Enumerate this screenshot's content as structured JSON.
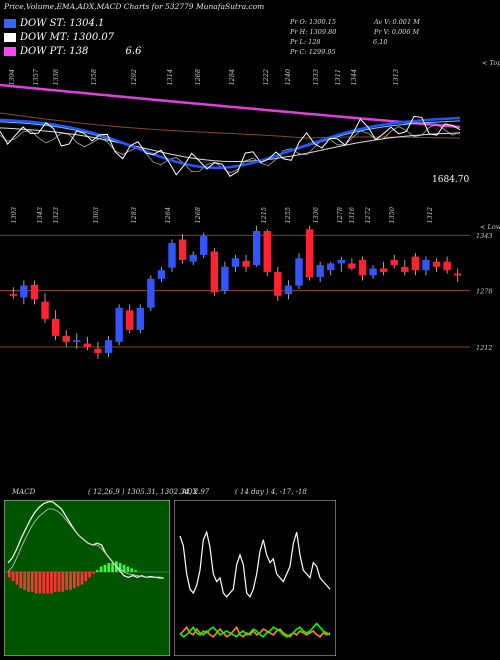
{
  "header": {
    "title": "Price,Volume,EMA,ADX,MACD Charts for 532779 MunafaSutra.com"
  },
  "legend": [
    {
      "label": "DOW ST: 1304.1",
      "color": "#3366ff"
    },
    {
      "label": "DOW MT: 1300.07",
      "color": "#ffffff"
    },
    {
      "label": "DOW PT: 138",
      "color": "#ff44ff",
      "extra": "6.6"
    }
  ],
  "quote": {
    "pr_o": "Pr   O: 1300.15",
    "pr_h": "Pr   H: 1309.80",
    "pr_l": "Pr   L: 128",
    "pr_c": "Pr   C: 1299.95",
    "av_v": "Av  V: 0.001  M",
    "pr_v": "Pr   V: 0.006  M",
    "mid_val": "6.10"
  },
  "ema_panel": {
    "top_label": "< Tops",
    "last_value": "1684.70",
    "top_ticks": [
      "1394",
      "1357",
      "1338",
      "1358",
      "1292",
      "1314",
      "1268",
      "1284",
      "1222",
      "1240",
      "1333",
      "1311",
      "1344",
      "1313"
    ],
    "bottom_ticks": [
      "1393",
      "1343",
      "1323",
      "1303",
      "1283",
      "1264",
      "1268",
      "1215",
      "1255",
      "1336",
      "1278",
      "1316",
      "1272",
      "1350",
      "1312"
    ],
    "bottom_label": "< Lows"
  },
  "chart_data": [
    {
      "type": "candlestick",
      "title": "",
      "y_labels": [
        "1343",
        "1278",
        "1212"
      ],
      "ylim": [
        1185,
        1355
      ],
      "candles": [
        {
          "o": 1274,
          "h": 1282,
          "l": 1268,
          "c": 1272
        },
        {
          "o": 1270,
          "h": 1290,
          "l": 1262,
          "c": 1284
        },
        {
          "o": 1285,
          "h": 1290,
          "l": 1262,
          "c": 1268
        },
        {
          "o": 1265,
          "h": 1275,
          "l": 1240,
          "c": 1245
        },
        {
          "o": 1245,
          "h": 1255,
          "l": 1220,
          "c": 1225
        },
        {
          "o": 1225,
          "h": 1232,
          "l": 1212,
          "c": 1218
        },
        {
          "o": 1218,
          "h": 1228,
          "l": 1210,
          "c": 1220
        },
        {
          "o": 1216,
          "h": 1224,
          "l": 1208,
          "c": 1212
        },
        {
          "o": 1210,
          "h": 1218,
          "l": 1198,
          "c": 1205
        },
        {
          "o": 1205,
          "h": 1225,
          "l": 1200,
          "c": 1220
        },
        {
          "o": 1218,
          "h": 1262,
          "l": 1214,
          "c": 1258
        },
        {
          "o": 1255,
          "h": 1262,
          "l": 1228,
          "c": 1232
        },
        {
          "o": 1232,
          "h": 1262,
          "l": 1228,
          "c": 1258
        },
        {
          "o": 1258,
          "h": 1296,
          "l": 1254,
          "c": 1292
        },
        {
          "o": 1292,
          "h": 1306,
          "l": 1288,
          "c": 1302
        },
        {
          "o": 1305,
          "h": 1338,
          "l": 1300,
          "c": 1334
        },
        {
          "o": 1338,
          "h": 1344,
          "l": 1310,
          "c": 1314
        },
        {
          "o": 1312,
          "h": 1324,
          "l": 1308,
          "c": 1320
        },
        {
          "o": 1320,
          "h": 1346,
          "l": 1316,
          "c": 1342
        },
        {
          "o": 1324,
          "h": 1328,
          "l": 1272,
          "c": 1276
        },
        {
          "o": 1278,
          "h": 1312,
          "l": 1274,
          "c": 1306
        },
        {
          "o": 1306,
          "h": 1320,
          "l": 1300,
          "c": 1316
        },
        {
          "o": 1313,
          "h": 1320,
          "l": 1300,
          "c": 1306
        },
        {
          "o": 1308,
          "h": 1354,
          "l": 1306,
          "c": 1348
        },
        {
          "o": 1348,
          "h": 1350,
          "l": 1295,
          "c": 1300
        },
        {
          "o": 1300,
          "h": 1306,
          "l": 1266,
          "c": 1272
        },
        {
          "o": 1274,
          "h": 1290,
          "l": 1268,
          "c": 1284
        },
        {
          "o": 1284,
          "h": 1322,
          "l": 1280,
          "c": 1316
        },
        {
          "o": 1350,
          "h": 1354,
          "l": 1290,
          "c": 1294
        },
        {
          "o": 1294,
          "h": 1312,
          "l": 1288,
          "c": 1308
        },
        {
          "o": 1302,
          "h": 1312,
          "l": 1296,
          "c": 1310
        },
        {
          "o": 1310,
          "h": 1318,
          "l": 1300,
          "c": 1314
        },
        {
          "o": 1310,
          "h": 1316,
          "l": 1302,
          "c": 1304
        },
        {
          "o": 1314,
          "h": 1318,
          "l": 1290,
          "c": 1296
        },
        {
          "o": 1296,
          "h": 1308,
          "l": 1292,
          "c": 1304
        },
        {
          "o": 1304,
          "h": 1312,
          "l": 1296,
          "c": 1300
        },
        {
          "o": 1314,
          "h": 1320,
          "l": 1304,
          "c": 1308
        },
        {
          "o": 1306,
          "h": 1314,
          "l": 1296,
          "c": 1300
        },
        {
          "o": 1318,
          "h": 1322,
          "l": 1296,
          "c": 1302
        },
        {
          "o": 1302,
          "h": 1318,
          "l": 1296,
          "c": 1314
        },
        {
          "o": 1312,
          "h": 1316,
          "l": 1300,
          "c": 1306
        },
        {
          "o": 1312,
          "h": 1318,
          "l": 1298,
          "c": 1302
        },
        {
          "o": 1298,
          "h": 1304,
          "l": 1288,
          "c": 1296
        }
      ],
      "colors": {
        "up": "#3355ff",
        "down": "#ff2233"
      }
    },
    {
      "type": "line",
      "title": "MACD",
      "params": "( 12,26,9 ) 1305.31,  1302.34,  2.97",
      "series": [
        {
          "values": [
            0.1,
            0.16,
            0.26,
            0.38,
            0.48,
            0.58,
            0.66,
            0.72,
            0.76,
            0.78,
            0.78,
            0.74,
            0.7,
            0.62,
            0.54,
            0.46,
            0.4,
            0.36,
            0.32,
            0.3,
            0.32,
            0.3,
            0.2,
            0.14,
            0.08,
            0.02,
            -0.04,
            -0.06,
            -0.04,
            -0.06,
            -0.04,
            -0.06,
            -0.05,
            -0.06,
            -0.06,
            -0.07
          ]
        },
        {
          "values": [
            0.0,
            0.06,
            0.16,
            0.28,
            0.38,
            0.48,
            0.56,
            0.62,
            0.66,
            0.7,
            0.7,
            0.68,
            0.64,
            0.58,
            0.52,
            0.46,
            0.4,
            0.36,
            0.32,
            0.3,
            0.3,
            0.26,
            0.2,
            0.14,
            0.08,
            0.04,
            0.0,
            -0.02,
            -0.03,
            -0.04,
            -0.05,
            -0.06,
            -0.06,
            -0.06,
            -0.07,
            -0.07
          ]
        }
      ],
      "histogram": [
        -0.06,
        -0.1,
        -0.14,
        -0.18,
        -0.2,
        -0.22,
        -0.22,
        -0.24,
        -0.24,
        -0.24,
        -0.24,
        -0.24,
        -0.22,
        -0.22,
        -0.22,
        -0.2,
        -0.2,
        -0.18,
        -0.16,
        -0.14,
        -0.1,
        -0.06,
        -0.02,
        0.02,
        0.06,
        0.08,
        0.1,
        0.1,
        0.12,
        0.1,
        0.08,
        0.06,
        0.04,
        0.02
      ]
    },
    {
      "type": "line",
      "title": "ADX",
      "params": "( 14  day ) 4, -17, -18",
      "series": [
        {
          "name": "",
          "color": "#ffffff",
          "values": [
            60,
            55,
            40,
            32,
            30,
            34,
            42,
            58,
            62,
            54,
            40,
            36,
            38,
            30,
            28,
            30,
            32,
            45,
            50,
            45,
            30,
            28,
            32,
            40,
            52,
            58,
            50,
            46,
            48,
            40,
            38,
            36,
            40,
            44,
            56,
            62,
            50,
            42,
            40,
            38,
            46,
            44,
            38,
            36,
            34,
            32
          ]
        },
        {
          "name": "",
          "color": "#ff8c00",
          "values": [
            8,
            10,
            12,
            9,
            8,
            11,
            9,
            8,
            10,
            8,
            7,
            9,
            11,
            9,
            7,
            8,
            10,
            12,
            8,
            7,
            9,
            8,
            10,
            8,
            9,
            11,
            10,
            9,
            8,
            10,
            11,
            9,
            8,
            7,
            9,
            8,
            10,
            9,
            8,
            9,
            10,
            8,
            7,
            9,
            8,
            9
          ]
        },
        {
          "name": "",
          "color": "#00ff00",
          "values": [
            9,
            7,
            8,
            10,
            12,
            9,
            8,
            10,
            9,
            11,
            12,
            10,
            8,
            9,
            10,
            9,
            8,
            7,
            9,
            10,
            8,
            9,
            11,
            10,
            8,
            7,
            9,
            10,
            12,
            11,
            10,
            8,
            7,
            8,
            9,
            11,
            12,
            10,
            9,
            10,
            12,
            14,
            12,
            10,
            9,
            8
          ]
        }
      ]
    }
  ]
}
